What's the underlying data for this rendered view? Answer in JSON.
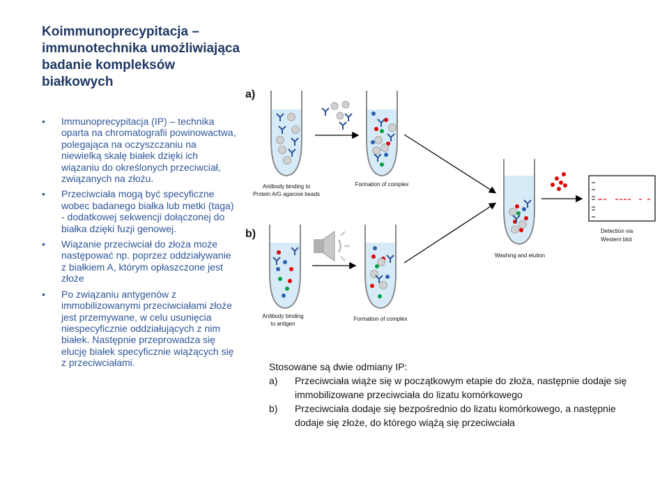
{
  "slide": {
    "title": "Koimmunoprecypitacja – immunotechnika umożliwiająca badanie kompleksów  białkowych",
    "bullets": [
      "Immunoprecypitacja (IP) – technika oparta na chromatografii powinowactwa, polegająca na oczyszczaniu na niewielką skalę białek dzięki ich wiązaniu do określonych przeciwciał, związanych na złożu.",
      "Przeciwciała mogą być specyficzne wobec badanego białka lub metki (taga) - dodatkowej sekwencji dołączonej do białka dzięki  fuzji genowej.",
      "Wiązanie przeciwciał do złoża może następować np. poprzez oddziaływanie z białkiem A, którym opłaszczone jest złoże",
      "Po związaniu antygenów z immobilizowanymi przeciwciałami złoże jest przemywane, w celu usunięcia niespecyficznie oddziałujących z nim białek. Następnie przeprowadza się elucję białek specyficznie wiążących się z przeciwciałami."
    ],
    "bullet_marker": "•"
  },
  "diagram": {
    "label_a": "a)",
    "label_b": "b)",
    "caption_a1_line1": "Antibody binding to",
    "caption_a1_line2": "Protein A/G agarose beads",
    "caption_a2": "Formation of complex",
    "caption_b1_line1": "Antibody binding",
    "caption_b1_line2": "to antigen",
    "caption_b2": "Formation of complex",
    "caption_wash": "Washing and elution",
    "caption_detect_line1": "Detection via",
    "caption_detect_line2": "Western blot",
    "colors": {
      "liquid": "#d6ebf7",
      "tube_stroke": "#8a8a8a",
      "bead": "#d0d0d0",
      "antibody": "#2f5597",
      "protein_red": "#e00000",
      "protein_green": "#00a040",
      "protein_blue": "#2e5fb0",
      "band": "#e00000"
    }
  },
  "note": {
    "intro": "Stosowane są dwie odmiany IP:",
    "items": [
      {
        "marker": "a)",
        "text": "Przeciwciała wiąże się w początkowym etapie do złoża, następnie dodaje się immobilizowane przeciwciała do lizatu komórkowego"
      },
      {
        "marker": "b)",
        "text": "Przeciwciała dodaje się bezpośrednio do lizatu komórkowego, a następnie dodaje się złoże, do którego wiążą się przeciwciała"
      }
    ]
  }
}
